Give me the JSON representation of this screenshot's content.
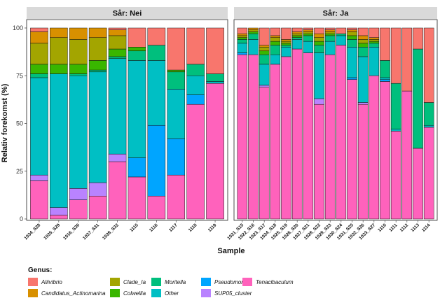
{
  "chart_data": {
    "type": "bar",
    "stacked": true,
    "xlabel": "Sample",
    "ylabel": "Relativ forekomst (%)",
    "ylim": [
      0,
      100
    ],
    "yticks": [
      0,
      25,
      50,
      75,
      100
    ],
    "grid": false,
    "legend_title": "Genus:",
    "legend_position": "bottom",
    "genera": [
      "Tenacibaculum",
      "SUP05_cluster",
      "Pseudomonas",
      "Other",
      "Moritella",
      "Colwellia",
      "Clade_Ia",
      "Candidatus_Actinomarina",
      "Aliivibrio"
    ],
    "legend_order": [
      "Aliivibrio",
      "Candidatus_Actinomarina",
      "Clade_Ia",
      "Colwellia",
      "Moritella",
      "Other",
      "Pseudomonas",
      "SUP05_cluster",
      "Tenacibaculum"
    ],
    "colors": {
      "Aliivibrio": "#F8766D",
      "Candidatus_Actinomarina": "#D89000",
      "Clade_Ia": "#A3A500",
      "Colwellia": "#39B600",
      "Moritella": "#00BF7D",
      "Other": "#00BFC4",
      "Pseudomonas": "#00A5FF",
      "SUP05_cluster": "#B983FF",
      "Tenacibaculum": "#FF62BC"
    },
    "panels": [
      {
        "title": "Sår: Nei",
        "samples": [
          {
            "name": "1034_S28",
            "values": [
              20,
              3,
              0,
              51,
              2,
              5,
              11,
              6,
              2
            ]
          },
          {
            "name": "1035_S29",
            "values": [
              2,
              4,
              0,
              70,
              0,
              5,
              14,
              5,
              0
            ]
          },
          {
            "name": "1016_S30",
            "values": [
              10,
              6,
              0,
              59,
              1,
              5,
              13,
              6,
              0
            ]
          },
          {
            "name": "1037_S31",
            "values": [
              12,
              7,
              0,
              58,
              1,
              5,
              12,
              5,
              0
            ]
          },
          {
            "name": "1038_S32",
            "values": [
              30,
              4,
              0,
              50,
              1,
              4,
              7,
              3,
              1
            ]
          },
          {
            "name": "1115",
            "values": [
              22,
              0,
              10,
              51,
              5,
              2,
              0,
              0,
              10
            ]
          },
          {
            "name": "1116",
            "values": [
              12,
              0,
              37,
              34,
              8,
              0,
              0,
              0,
              9
            ]
          },
          {
            "name": "1117",
            "values": [
              23,
              0,
              19,
              26,
              9,
              1,
              0,
              0,
              22
            ]
          },
          {
            "name": "1118",
            "values": [
              60,
              0,
              5,
              10,
              6,
              0,
              0,
              0,
              19
            ]
          },
          {
            "name": "1119",
            "values": [
              71,
              0,
              0,
              1,
              4,
              0,
              0,
              0,
              24
            ]
          }
        ]
      },
      {
        "title": "Sår: Ja",
        "samples": [
          {
            "name": "1021_S15",
            "values": [
              86,
              0,
              1,
              5,
              2,
              1,
              1,
              1,
              3
            ]
          },
          {
            "name": "1022_S16",
            "values": [
              86,
              0,
              0,
              8,
              3,
              1,
              1,
              1,
              0
            ]
          },
          {
            "name": "1023_S17",
            "values": [
              69,
              1,
              0,
              11,
              5,
              2,
              2,
              1,
              9
            ]
          },
          {
            "name": "1024_S18",
            "values": [
              81,
              0,
              0,
              5,
              5,
              2,
              2,
              1,
              4
            ]
          },
          {
            "name": "1025_S19",
            "values": [
              85,
              0,
              0,
              5,
              1,
              1,
              1,
              1,
              6
            ]
          },
          {
            "name": "1026_S20",
            "values": [
              89,
              0,
              0,
              5,
              1,
              1,
              1,
              1,
              2
            ]
          },
          {
            "name": "1027_S21",
            "values": [
              87,
              0,
              0,
              6,
              3,
              1,
              1,
              1,
              1
            ]
          },
          {
            "name": "1028_S22",
            "values": [
              60,
              3,
              0,
              24,
              4,
              2,
              2,
              2,
              3
            ]
          },
          {
            "name": "1029_S23",
            "values": [
              86,
              0,
              0,
              7,
              3,
              1,
              1,
              1,
              1
            ]
          },
          {
            "name": "1030_S24",
            "values": [
              91,
              0,
              0,
              5,
              1,
              0,
              0,
              0,
              3
            ]
          },
          {
            "name": "1031_S25",
            "values": [
              73,
              0,
              1,
              16,
              4,
              2,
              2,
              1,
              1
            ]
          },
          {
            "name": "1032_S26",
            "values": [
              60,
              1,
              0,
              24,
              5,
              2,
              2,
              2,
              4
            ]
          },
          {
            "name": "1033_S27",
            "values": [
              75,
              0,
              0,
              15,
              2,
              1,
              1,
              1,
              5
            ]
          },
          {
            "name": "1110",
            "values": [
              72,
              0,
              1,
              1,
              9,
              0,
              0,
              0,
              17
            ]
          },
          {
            "name": "1111",
            "values": [
              46,
              0,
              0,
              1,
              24,
              0,
              0,
              0,
              29
            ]
          },
          {
            "name": "1112",
            "values": [
              67,
              0,
              0,
              0,
              0,
              0,
              0,
              0,
              33
            ]
          },
          {
            "name": "1113",
            "values": [
              37,
              0,
              0,
              0,
              52,
              0,
              0,
              0,
              11
            ]
          },
          {
            "name": "1114",
            "values": [
              48,
              0,
              0,
              1,
              12,
              0,
              0,
              0,
              39
            ]
          }
        ]
      }
    ]
  }
}
